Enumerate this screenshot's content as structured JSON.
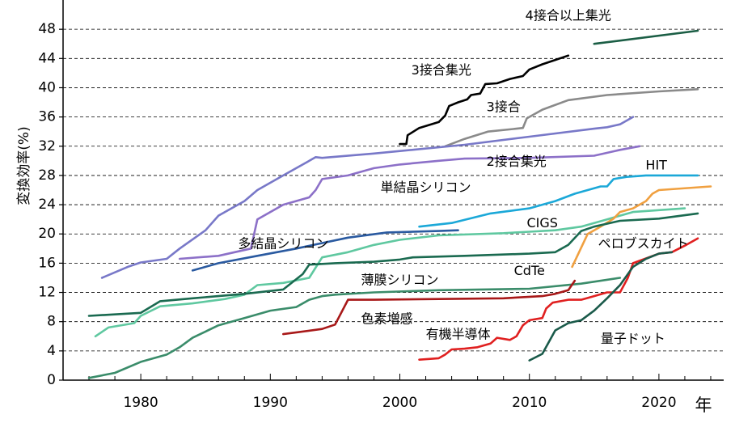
{
  "chart_data": {
    "type": "line",
    "xlabel": "年",
    "ylabel": "変換効率(%)",
    "xlim": [
      1974,
      2025
    ],
    "ylim": [
      0,
      52
    ],
    "xticks": [
      1980,
      1990,
      2000,
      2010,
      2020
    ],
    "yticks": [
      0,
      4,
      8,
      12,
      16,
      20,
      24,
      28,
      32,
      36,
      40,
      44,
      48
    ],
    "grid": "horizontal dashed",
    "legend": "none",
    "series": [
      {
        "name": "4接合以上集光",
        "color": "#1b5e45",
        "points": [
          [
            2015,
            46
          ],
          [
            2023,
            47.8
          ]
        ]
      },
      {
        "name": "3接合集光",
        "color": "#000000",
        "points": [
          [
            2000,
            32.3
          ],
          [
            2000.5,
            32.3
          ],
          [
            2000.6,
            33.5
          ],
          [
            2001.5,
            34.5
          ],
          [
            2003,
            35.3
          ],
          [
            2003.5,
            36.2
          ],
          [
            2003.8,
            37.5
          ],
          [
            2004.5,
            38
          ],
          [
            2005.2,
            38.4
          ],
          [
            2005.5,
            39
          ],
          [
            2006.2,
            39.2
          ],
          [
            2006.6,
            40.5
          ],
          [
            2007.5,
            40.6
          ],
          [
            2008.5,
            41.2
          ],
          [
            2009.5,
            41.6
          ],
          [
            2010,
            42.5
          ],
          [
            2011,
            43.2
          ],
          [
            2012,
            43.8
          ],
          [
            2013,
            44.4
          ]
        ]
      },
      {
        "name": "3接合",
        "color": "#8a8a8a",
        "points": [
          [
            2003.5,
            32
          ],
          [
            2005,
            33
          ],
          [
            2006.8,
            34
          ],
          [
            2009,
            34.4
          ],
          [
            2009.5,
            34.5
          ],
          [
            2009.8,
            35.8
          ],
          [
            2011,
            37
          ],
          [
            2013,
            38.3
          ],
          [
            2016,
            39
          ],
          [
            2020,
            39.5
          ],
          [
            2023,
            39.8
          ]
        ]
      },
      {
        "name": "2接合集光",
        "color": "#7878c8",
        "points": [
          [
            1977,
            14
          ],
          [
            1979,
            15.5
          ],
          [
            1980,
            16.1
          ],
          [
            1982,
            16.6
          ],
          [
            1983,
            18
          ],
          [
            1985,
            20.5
          ],
          [
            1986,
            22.5
          ],
          [
            1988,
            24.5
          ],
          [
            1989,
            26
          ],
          [
            1991,
            28
          ],
          [
            1992.5,
            29.5
          ],
          [
            1993.5,
            30.5
          ],
          [
            1994,
            30.4
          ],
          [
            1998,
            31
          ],
          [
            2005,
            32.2
          ],
          [
            2010,
            33.3
          ],
          [
            2015,
            34.4
          ],
          [
            2016,
            34.6
          ],
          [
            2017,
            35
          ],
          [
            2018,
            36
          ]
        ]
      },
      {
        "name": "HIT",
        "color": "#1ba8d8",
        "points": [
          [
            2001.5,
            21
          ],
          [
            2004,
            21.5
          ],
          [
            2007,
            22.8
          ],
          [
            2010,
            23.5
          ],
          [
            2012,
            24.5
          ],
          [
            2013.5,
            25.5
          ],
          [
            2015.5,
            26.5
          ],
          [
            2016,
            26.5
          ],
          [
            2016.5,
            27.5
          ],
          [
            2017.5,
            27.8
          ],
          [
            2019,
            28
          ],
          [
            2023,
            28
          ]
        ]
      },
      {
        "name": "単結晶シリコン",
        "color": "#8c70c8",
        "points": [
          [
            1983,
            16.6
          ],
          [
            1986,
            17
          ],
          [
            1988.5,
            18
          ],
          [
            1989,
            22
          ],
          [
            1991,
            24
          ],
          [
            1993,
            25
          ],
          [
            1993.5,
            26
          ],
          [
            1994,
            27.5
          ],
          [
            1996,
            28
          ],
          [
            1998,
            29
          ],
          [
            2000,
            29.5
          ],
          [
            2003,
            30
          ],
          [
            2005,
            30.3
          ],
          [
            2010,
            30.4
          ],
          [
            2015,
            30.7
          ],
          [
            2017,
            31.5
          ],
          [
            2018.5,
            32
          ]
        ]
      },
      {
        "name": "多結晶シリコン",
        "color": "#2a5aa0",
        "points": [
          [
            1984,
            15
          ],
          [
            1986,
            16
          ],
          [
            1989,
            17
          ],
          [
            1992,
            18
          ],
          [
            1996,
            19.5
          ],
          [
            1999,
            20.2
          ],
          [
            2003,
            20.4
          ],
          [
            2004.5,
            20.5
          ]
        ]
      },
      {
        "name": "CIGS",
        "color": "#5fc8a0",
        "points": [
          [
            1976.5,
            6
          ],
          [
            1977.5,
            7.2
          ],
          [
            1979.5,
            7.8
          ],
          [
            1980,
            8.8
          ],
          [
            1981.5,
            10.1
          ],
          [
            1984,
            10.5
          ],
          [
            1986.5,
            11.1
          ],
          [
            1988,
            11.7
          ],
          [
            1989,
            13
          ],
          [
            1991,
            13.3
          ],
          [
            1993,
            14
          ],
          [
            1994,
            16.8
          ],
          [
            1996,
            17.5
          ],
          [
            1998,
            18.5
          ],
          [
            2000,
            19.2
          ],
          [
            2003,
            19.8
          ],
          [
            2008,
            20.1
          ],
          [
            2010,
            20.3
          ],
          [
            2012,
            20.5
          ],
          [
            2014,
            21
          ],
          [
            2016,
            22
          ],
          [
            2018,
            23
          ],
          [
            2022,
            23.5
          ]
        ]
      },
      {
        "name": "ペロブスカイト",
        "color": "#f0a040",
        "points": [
          [
            2013.3,
            15.5
          ],
          [
            2014.5,
            20
          ],
          [
            2015.5,
            21
          ],
          [
            2016.5,
            22.1
          ],
          [
            2017,
            23
          ],
          [
            2018,
            23.5
          ],
          [
            2019,
            24.5
          ],
          [
            2019.5,
            25.5
          ],
          [
            2020,
            26
          ],
          [
            2024,
            26.5
          ]
        ]
      },
      {
        "name": "CdTe",
        "color": "#1a6a50",
        "points": [
          [
            1976,
            8.8
          ],
          [
            1980,
            9.2
          ],
          [
            1981.5,
            10.8
          ],
          [
            1984,
            11.2
          ],
          [
            1986,
            11.5
          ],
          [
            1988,
            11.8
          ],
          [
            1991,
            12.4
          ],
          [
            1992.5,
            14.5
          ],
          [
            1993,
            15.8
          ],
          [
            1995,
            16
          ],
          [
            1998,
            16.2
          ],
          [
            2000,
            16.5
          ],
          [
            2001,
            16.8
          ],
          [
            2005,
            17
          ],
          [
            2010,
            17.3
          ],
          [
            2012,
            17.5
          ],
          [
            2013,
            18.5
          ],
          [
            2014,
            20.4
          ],
          [
            2015,
            21
          ],
          [
            2017,
            21.8
          ],
          [
            2020,
            22.1
          ],
          [
            2023,
            22.8
          ]
        ]
      },
      {
        "name": "薄膜シリコン",
        "color": "#3a8c6a",
        "points": [
          [
            1976,
            0.3
          ],
          [
            1978,
            1
          ],
          [
            1980,
            2.5
          ],
          [
            1982,
            3.5
          ],
          [
            1983,
            4.5
          ],
          [
            1984,
            5.8
          ],
          [
            1986,
            7.5
          ],
          [
            1988,
            8.5
          ],
          [
            1990,
            9.5
          ],
          [
            1992,
            10
          ],
          [
            1993,
            11
          ],
          [
            1994,
            11.5
          ],
          [
            1995,
            11.7
          ],
          [
            1998,
            12
          ],
          [
            2003,
            12.3
          ],
          [
            2010,
            12.5
          ],
          [
            2014,
            13.2
          ],
          [
            2017,
            14
          ]
        ]
      },
      {
        "name": "色素増感",
        "color": "#a81818",
        "points": [
          [
            1991,
            6.3
          ],
          [
            1994,
            7
          ],
          [
            1995,
            7.6
          ],
          [
            1996,
            11
          ],
          [
            1998,
            11
          ],
          [
            2003,
            11.1
          ],
          [
            2008,
            11.2
          ],
          [
            2011,
            11.5
          ],
          [
            2012,
            11.8
          ],
          [
            2013,
            12.3
          ],
          [
            2013.5,
            13.6
          ]
        ]
      },
      {
        "name": "有機半導体",
        "color": "#e02020",
        "points": [
          [
            2001.5,
            2.8
          ],
          [
            2003,
            3
          ],
          [
            2003.5,
            3.5
          ],
          [
            2004,
            4.2
          ],
          [
            2005,
            4.3
          ],
          [
            2006,
            4.5
          ],
          [
            2007,
            5
          ],
          [
            2007.5,
            5.8
          ],
          [
            2008.5,
            5.5
          ],
          [
            2009,
            6
          ],
          [
            2009.5,
            7.5
          ],
          [
            2010,
            8.2
          ],
          [
            2011,
            8.5
          ],
          [
            2011.3,
            9.8
          ],
          [
            2011.8,
            10.6
          ],
          [
            2013,
            11
          ],
          [
            2014,
            11
          ],
          [
            2015,
            11.5
          ],
          [
            2016,
            12
          ],
          [
            2017,
            12
          ],
          [
            2017.6,
            14
          ],
          [
            2018,
            16
          ],
          [
            2020,
            17.3
          ],
          [
            2021,
            17.5
          ],
          [
            2022,
            18.4
          ],
          [
            2023,
            19.4
          ]
        ]
      },
      {
        "name": "量子ドット",
        "color": "#1a5a4a",
        "points": [
          [
            2010,
            2.7
          ],
          [
            2011,
            3.6
          ],
          [
            2012,
            6.8
          ],
          [
            2013,
            7.8
          ],
          [
            2014,
            8.2
          ],
          [
            2015,
            9.5
          ],
          [
            2016,
            11.2
          ],
          [
            2017,
            13
          ],
          [
            2018,
            15.5
          ],
          [
            2019,
            16.6
          ],
          [
            2020,
            17.3
          ],
          [
            2021,
            17.5
          ]
        ]
      }
    ],
    "labels": [
      {
        "text": "4接合以上集光",
        "x": 2013,
        "y": 49.8
      },
      {
        "text": "3接合集光",
        "x": 2003.2,
        "y": 42.3
      },
      {
        "text": "3接合",
        "x": 2008,
        "y": 37.3
      },
      {
        "text": "2接合集光",
        "x": 2009,
        "y": 29.8
      },
      {
        "text": "HIT",
        "x": 2019.8,
        "y": 29.3
      },
      {
        "text": "単結晶シリコン",
        "x": 2002,
        "y": 26.3
      },
      {
        "text": "CIGS",
        "x": 2011,
        "y": 21.4
      },
      {
        "text": "多結晶シリコン",
        "x": 1991,
        "y": 18.6
      },
      {
        "text": "ペロブスカイト",
        "x": 2018.8,
        "y": 18.6
      },
      {
        "text": "CdTe",
        "x": 2010,
        "y": 14.9
      },
      {
        "text": "薄膜シリコン",
        "x": 2000,
        "y": 13.6
      },
      {
        "text": "色素増感",
        "x": 1999,
        "y": 8.3
      },
      {
        "text": "有機半導体",
        "x": 2004.5,
        "y": 6.2
      },
      {
        "text": "量子ドット",
        "x": 2018,
        "y": 5.6
      }
    ]
  }
}
